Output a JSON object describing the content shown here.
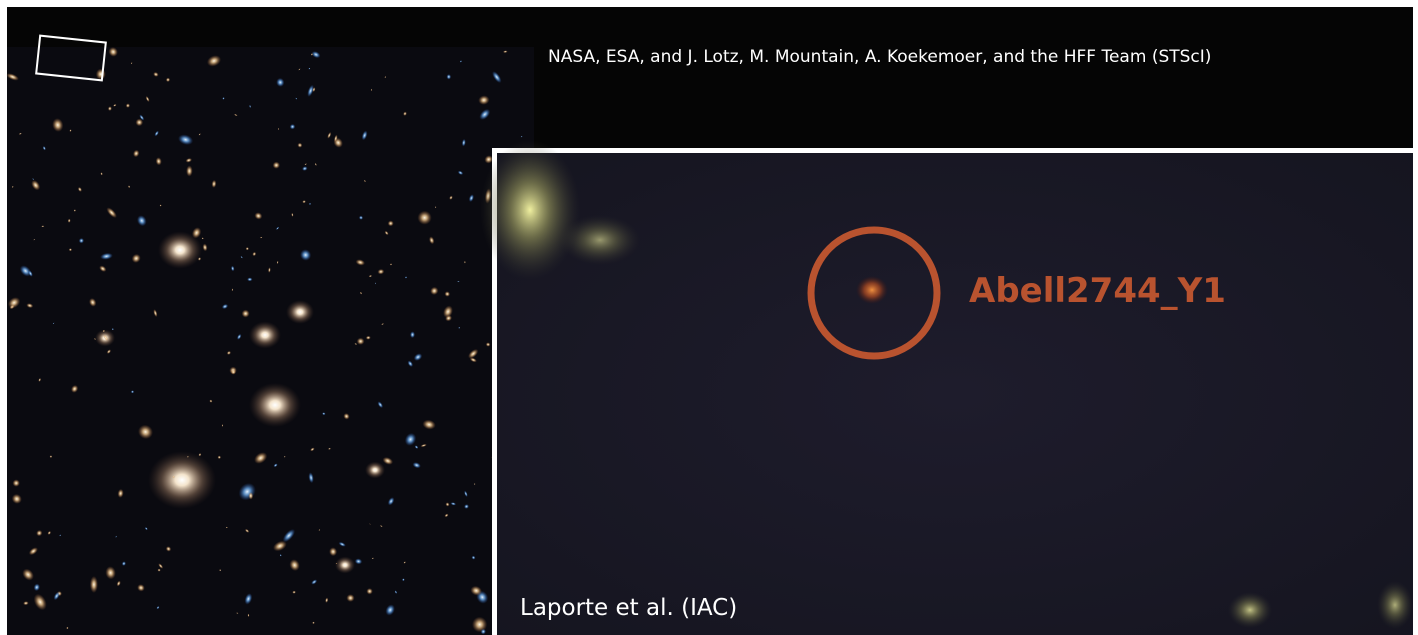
{
  "image": {
    "credit_top": "NASA, ESA, and J. Lotz, M. Mountain, A. Koekemoer, and the HFF Team (STScI)",
    "target_label": "Abell2744_Y1",
    "credit_inset": "Laporte et al. (IAC)"
  }
}
